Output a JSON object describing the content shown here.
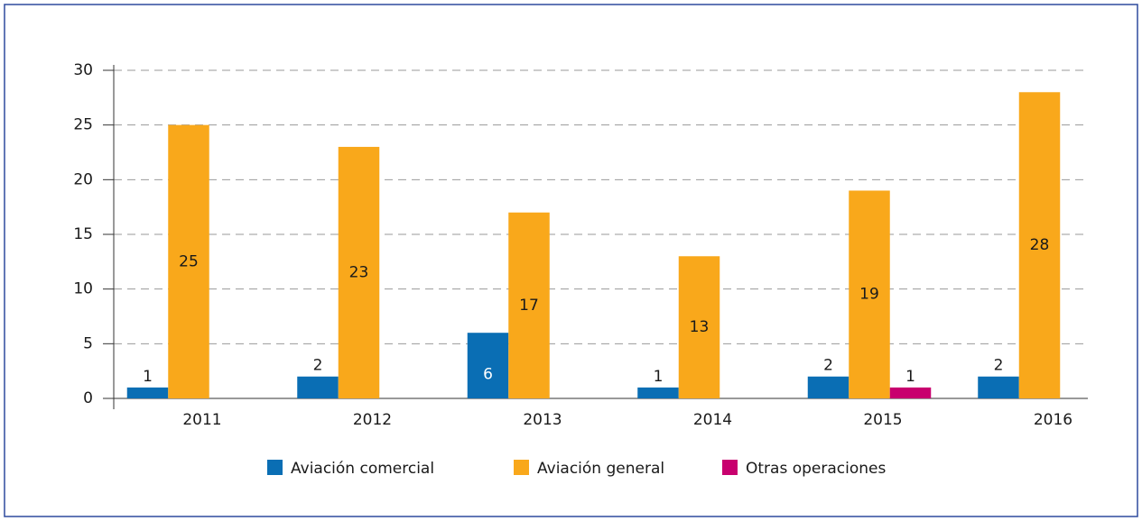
{
  "chart_data": {
    "type": "bar",
    "categories": [
      "2011",
      "2012",
      "2013",
      "2014",
      "2015",
      "2016"
    ],
    "series": [
      {
        "name": "Aviación comercial",
        "color": "#0a6eb4",
        "values": [
          1,
          2,
          6,
          1,
          2,
          2
        ]
      },
      {
        "name": "Aviación general",
        "color": "#f9a81b",
        "values": [
          25,
          23,
          17,
          13,
          19,
          28
        ]
      },
      {
        "name": "Otras operaciones",
        "color": "#c8006e",
        "values": [
          null,
          null,
          null,
          null,
          1,
          null
        ]
      }
    ],
    "ylim": [
      0,
      30
    ],
    "yticks": [
      0,
      5,
      10,
      15,
      20,
      25,
      30
    ],
    "grid": true,
    "legend": "bottom"
  }
}
